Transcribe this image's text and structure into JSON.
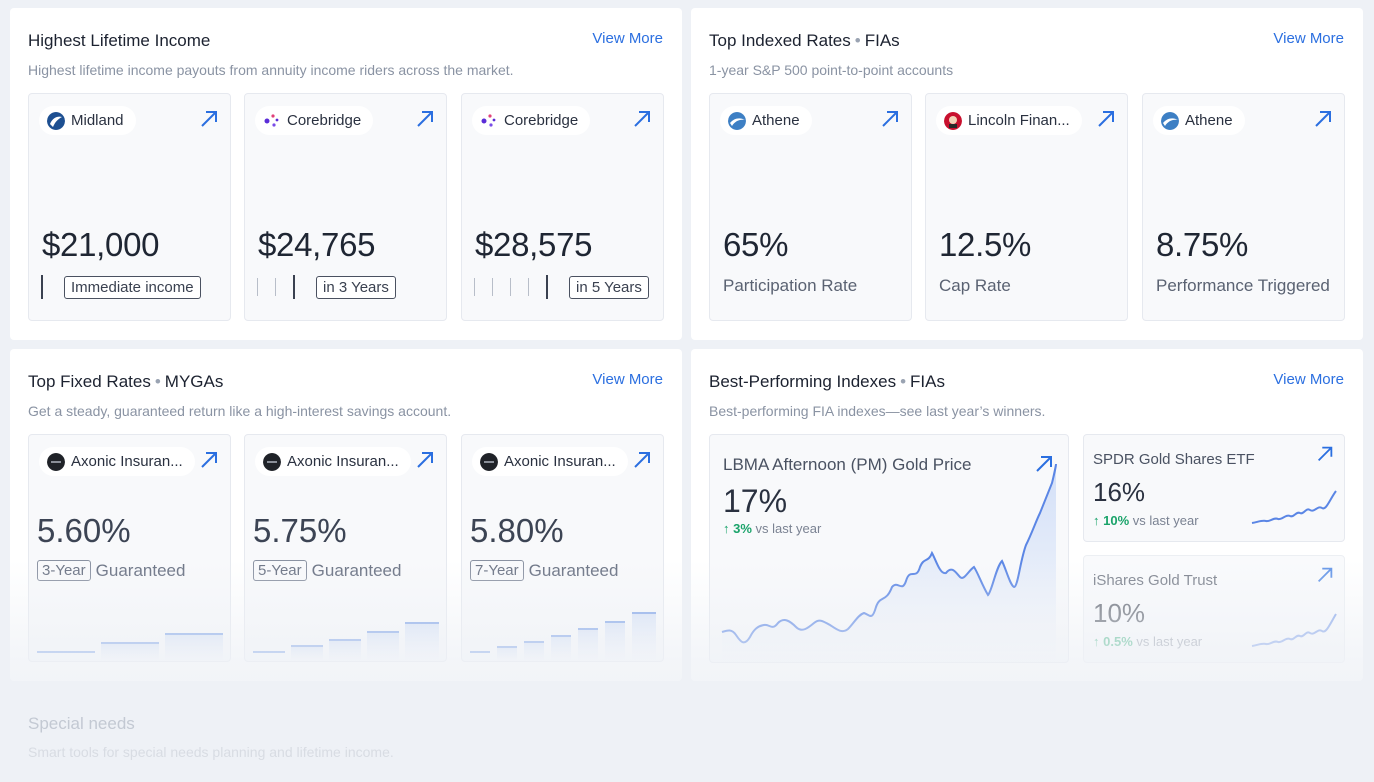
{
  "income": {
    "title": "Highest Lifetime Income",
    "subtitle": "Highest lifetime income payouts from annuity income riders across the market.",
    "more": "View More",
    "cards": [
      {
        "carrier": "Midland",
        "amount": "$21,000",
        "tag": "Immediate income"
      },
      {
        "carrier": "Corebridge",
        "amount": "$24,765",
        "tag": "in 3 Years"
      },
      {
        "carrier": "Corebridge",
        "amount": "$28,575",
        "tag": "in 5 Years"
      }
    ]
  },
  "indexed": {
    "title": "Top Indexed Rates",
    "tag": "FIAs",
    "subtitle": "1-year S&P 500 point-to-point accounts",
    "more": "View More",
    "cards": [
      {
        "carrier": "Athene",
        "value": "65%",
        "label": "Participation Rate"
      },
      {
        "carrier": "Lincoln Finan...",
        "value": "12.5%",
        "label": "Cap Rate"
      },
      {
        "carrier": "Athene",
        "value": "8.75%",
        "label": "Performance Triggered"
      }
    ]
  },
  "fixed": {
    "title": "Top Fixed Rates",
    "tag": "MYGAs",
    "subtitle": "Get a steady, guaranteed return like a high-interest savings account.",
    "more": "View More",
    "cards": [
      {
        "carrier": "Axonic Insuran...",
        "rate": "5.60%",
        "term": "3-Year",
        "label": "Guaranteed"
      },
      {
        "carrier": "Axonic Insuran...",
        "rate": "5.75%",
        "term": "5-Year",
        "label": "Guaranteed"
      },
      {
        "carrier": "Axonic Insuran...",
        "rate": "5.80%",
        "term": "7-Year",
        "label": "Guaranteed"
      }
    ]
  },
  "indexes": {
    "title": "Best-Performing Indexes",
    "tag": "FIAs",
    "subtitle": "Best-performing FIA indexes—see last year’s winners.",
    "more": "View More",
    "featured": {
      "name": "LBMA Afternoon (PM) Gold Price",
      "value": "17%",
      "delta": "3%",
      "delta_suffix": "vs last year"
    },
    "others": [
      {
        "name": "SPDR Gold Shares ETF",
        "value": "16%",
        "delta": "10%",
        "delta_suffix": "vs last year"
      },
      {
        "name": "iShares Gold Trust",
        "value": "10%",
        "delta": "0.5%",
        "delta_suffix": "vs last year"
      }
    ]
  },
  "special": {
    "title": "Special needs",
    "subtitle": "Smart tools for special needs planning and lifetime income."
  },
  "colors": {
    "accent": "#2b6fe0",
    "positive": "#1aa36a",
    "line": "#5b86e5"
  },
  "icons": {
    "open": "arrow-up-right-icon",
    "delta": "arrow-up-icon"
  }
}
